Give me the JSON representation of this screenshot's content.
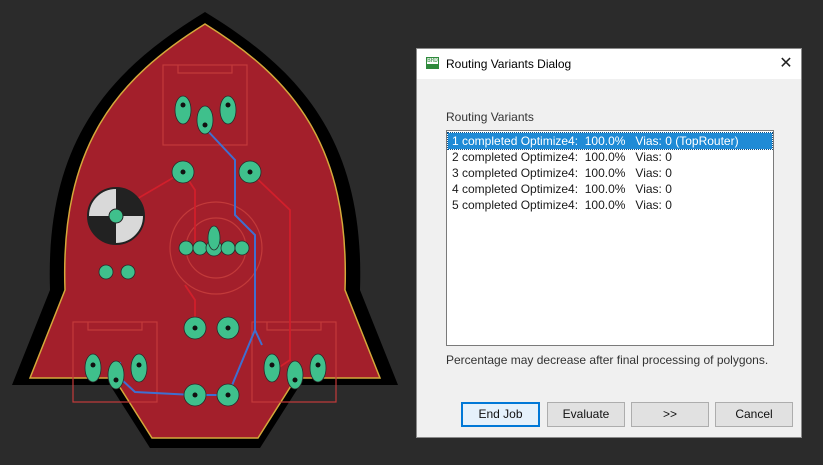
{
  "dialog": {
    "icon_text": "BRD",
    "title": "Routing Variants Dialog",
    "close_glyph": "✕",
    "section_label": "Routing Variants",
    "variants": [
      "1 completed Optimize4:  100.0%   Vias: 0 (TopRouter)",
      "2 completed Optimize4:  100.0%   Vias: 0",
      "3 completed Optimize4:  100.0%   Vias: 0",
      "4 completed Optimize4:  100.0%   Vias: 0",
      "5 completed Optimize4:  100.0%   Vias: 0"
    ],
    "selected_index": 0,
    "hint": "Percentage may decrease after final processing of polygons.",
    "buttons": {
      "end_job": "End Job",
      "evaluate": "Evaluate",
      "next": ">>",
      "cancel": "Cancel"
    }
  },
  "board": {
    "colors": {
      "background": "#2b2b2b",
      "outline": "#000000",
      "board_edge": "#d4a83a",
      "copper_fill": "#a31f2b",
      "top_trace": "#d11f2b",
      "bottom_trace": "#3f6fd0",
      "pad": "#3fc08c",
      "silkscreen": "#c23a3a"
    }
  }
}
